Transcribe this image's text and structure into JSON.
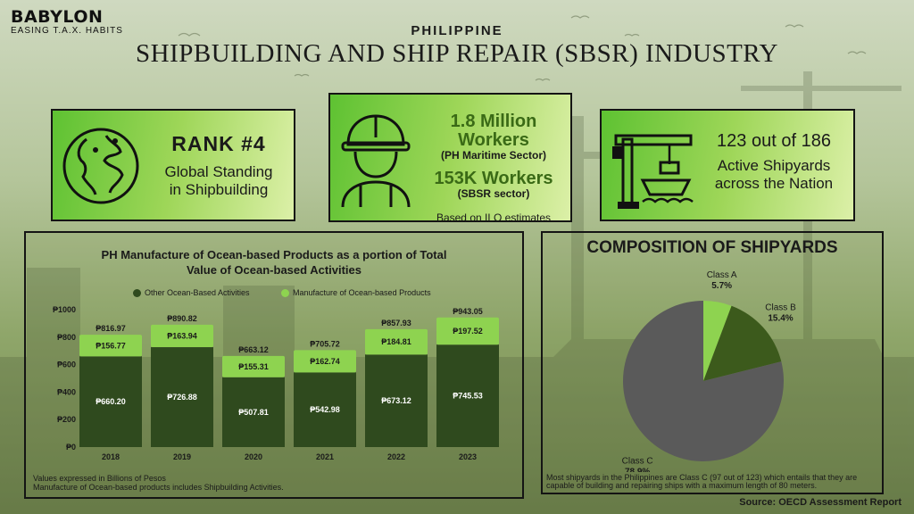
{
  "brand": {
    "name": "BABYLON",
    "tagline": "EASING T.A.X. HABITS"
  },
  "header": {
    "supertitle": "PHILIPPINE",
    "title": "SHIPBUILDING AND SHIP REPAIR (SBSR) INDUSTRY"
  },
  "cards": {
    "rank": {
      "icon": "globe-icon",
      "value": "RANK #4",
      "label_line1": "Global Standing",
      "label_line2": "in Shipbuilding"
    },
    "workers": {
      "icon": "worker-icon",
      "maritime_value": "1.8 Million Workers",
      "maritime_label": "(PH Maritime Sector)",
      "sbsr_value": "153K Workers",
      "sbsr_label": "(SBSR sector)",
      "note": "Based on ILO estimates"
    },
    "shipyards": {
      "icon": "shipyard-crane-icon",
      "value": "123 out of 186",
      "label_line1": "Active Shipyards",
      "label_line2": "across the Nation"
    }
  },
  "colors": {
    "other_activities": "#2f4a1e",
    "manufacture": "#8ed350",
    "class_c": "#5a5a5a",
    "class_b": "#3c5a1c",
    "class_a": "#8ed350"
  },
  "chart_data": [
    {
      "type": "bar",
      "stacked": true,
      "title_line1": "PH Manufacture of Ocean-based Products as a portion of Total",
      "title_line2": "Value of Ocean-based Activities",
      "categories": [
        "2018",
        "2019",
        "2020",
        "2021",
        "2022",
        "2023"
      ],
      "series": [
        {
          "name": "Other Ocean-Based Activities",
          "values": [
            660.2,
            726.88,
            507.81,
            542.98,
            673.12,
            745.53
          ],
          "labels": [
            "₱660.20",
            "₱726.88",
            "₱507.81",
            "₱542.98",
            "₱673.12",
            "₱745.53"
          ]
        },
        {
          "name": "Manufacture of Ocean-based Products",
          "values": [
            156.77,
            163.94,
            155.31,
            162.74,
            184.81,
            197.52
          ],
          "labels": [
            "₱156.77",
            "₱163.94",
            "₱155.31",
            "₱162.74",
            "₱184.81",
            "₱197.52"
          ]
        }
      ],
      "totals": [
        816.97,
        890.82,
        663.12,
        705.72,
        857.93,
        943.05
      ],
      "total_labels": [
        "₱816.97",
        "₱890.82",
        "₱663.12",
        "₱705.72",
        "₱857.93",
        "₱943.05"
      ],
      "ylim": [
        0,
        1000
      ],
      "yticks": [
        0,
        200,
        400,
        600,
        800,
        1000
      ],
      "ytick_labels": [
        "₱0",
        "₱200",
        "₱400",
        "₱600",
        "₱800",
        "₱1000"
      ],
      "legend_position": "top",
      "grid": false,
      "notes": [
        "Values expressed in Billions of Pesos",
        "Manufacture of Ocean-based products includes Shipbuilding Activities."
      ]
    },
    {
      "type": "pie",
      "title": "COMPOSITION OF SHIPYARDS",
      "slices": [
        {
          "name": "Class A",
          "value": 5.7,
          "label": "5.7%"
        },
        {
          "name": "Class B",
          "value": 15.4,
          "label": "15.4%"
        },
        {
          "name": "Class C",
          "value": 78.9,
          "label": "78.9%"
        }
      ],
      "note": "Most shipyards in the Philippines are Class C (97 out of 123) which entails that they are capable of building and repairing ships with a maximum length of 80 meters."
    }
  ],
  "footer": {
    "source": "Source: OECD Assessment Report"
  }
}
